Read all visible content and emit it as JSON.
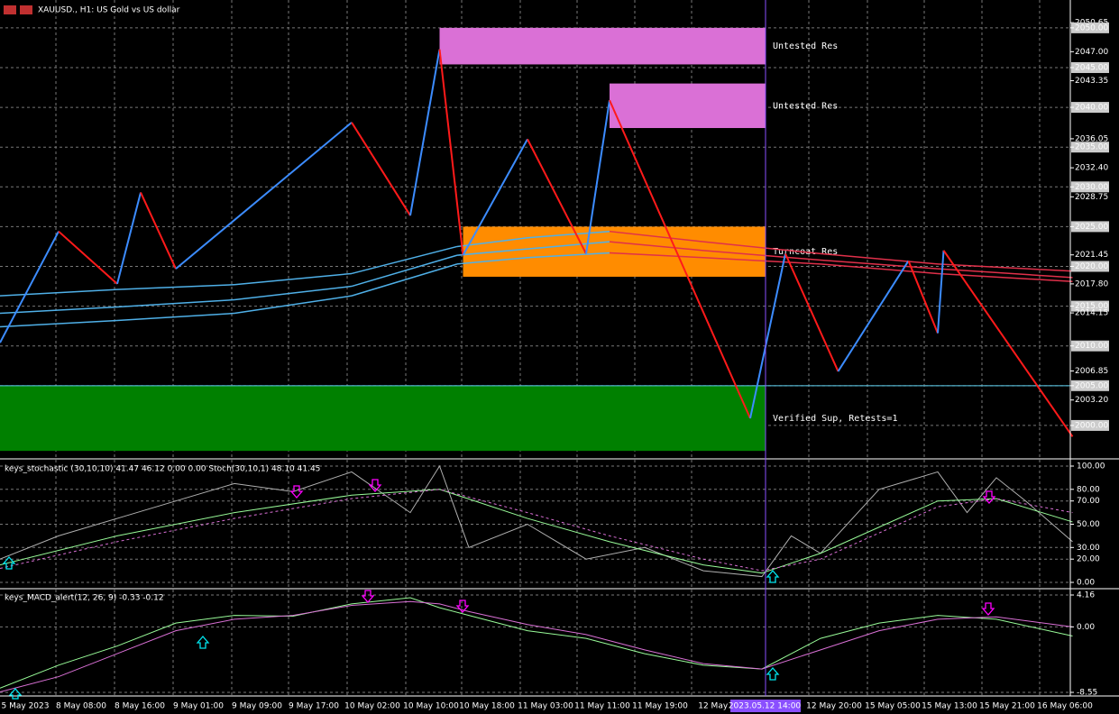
{
  "chart_data": {
    "type": "candlestick-indicators",
    "title": "XAUUSD., H1:  US Gold vs US dollar",
    "yticks": [
      {
        "value": 2050.65,
        "label": "2050.65"
      },
      {
        "value": 2050,
        "label": "2050.00"
      },
      {
        "value": 2047,
        "label": "2047.00"
      },
      {
        "value": 2045,
        "label": "2045.00"
      },
      {
        "value": 2043.35,
        "label": "2043.35"
      },
      {
        "value": 2040,
        "label": "2040.00"
      },
      {
        "value": 2036.05,
        "label": "2036.05"
      },
      {
        "value": 2035,
        "label": "2035.00"
      },
      {
        "value": 2032.4,
        "label": "2032.40"
      },
      {
        "value": 2030,
        "label": "2030.00"
      },
      {
        "value": 2028.75,
        "label": "2028.75"
      },
      {
        "value": 2025,
        "label": "2025.00"
      },
      {
        "value": 2021.45,
        "label": "2021.45"
      },
      {
        "value": 2020,
        "label": "2020.00"
      },
      {
        "value": 2017.8,
        "label": "2017.80"
      },
      {
        "value": 2015,
        "label": "2015.00"
      },
      {
        "value": 2014.15,
        "label": "2014.15"
      },
      {
        "value": 2010,
        "label": "2010.00"
      },
      {
        "value": 2006.85,
        "label": "2006.85"
      },
      {
        "value": 2005,
        "label": "2005.00"
      },
      {
        "value": 2003.2,
        "label": "2003.20"
      },
      {
        "value": 2000,
        "label": "2000.00"
      }
    ],
    "ylim": [
      1996.25,
      2053.5
    ],
    "x_labels": [
      "5 May 2023",
      "8 May 08:00",
      "8 May 16:00",
      "9 May 01:00",
      "9 May 09:00",
      "9 May 17:00",
      "10 May 02:00",
      "10 May 10:00",
      "10 May 18:00",
      "11 May 03:00",
      "11 May 11:00",
      "11 May 19:00",
      "12 May 0",
      "2023.05.12 14:00",
      "12 May 20:00",
      "15 May 05:00",
      "15 May 13:00",
      "15 May 21:00",
      "16 May 06:00"
    ],
    "support_line": 2005,
    "zones": [
      {
        "label": "Untested Res",
        "top": 2050,
        "bottom": 2045.4,
        "start": 75,
        "color": "#da70d6"
      },
      {
        "label": "Untested Res",
        "top": 2043,
        "bottom": 2037.4,
        "start": 104,
        "color": "#da70d6"
      },
      {
        "label": "Turncoat Res",
        "top": 2025,
        "bottom": 2018.7,
        "start": 79,
        "color": "#ff8c00"
      },
      {
        "label": "Verified Sup, Retests=1",
        "top": 2005,
        "bottom": 1996.8,
        "start": 0,
        "color": "#008000"
      }
    ],
    "zigzag": {
      "x": [
        0,
        10,
        20,
        24,
        30,
        60,
        70,
        75,
        79,
        90,
        100,
        104,
        128,
        134,
        143,
        155,
        160,
        161,
        183
      ],
      "values": [
        2010.4,
        2024.4,
        2017.8,
        2029.3,
        2019.7,
        2038.1,
        2026.4,
        2047.3,
        2021.4,
        2036,
        2021.6,
        2040.9,
        2000.9,
        2021.6,
        2006.8,
        2020.7,
        2011.6,
        2022,
        1998.6
      ]
    },
    "moving_averages": {
      "x": [
        0,
        20,
        40,
        60,
        78,
        90,
        104,
        120,
        140,
        160,
        183
      ],
      "series": [
        {
          "values": [
            2016.3,
            2017.1,
            2017.7,
            2019.1,
            2022.5,
            2023.6,
            2024.4,
            2023.1,
            2021.6,
            2020.3,
            2019.4
          ]
        },
        {
          "values": [
            2014.1,
            2014.9,
            2015.8,
            2017.5,
            2021.4,
            2022.2,
            2023.1,
            2022,
            2020.8,
            2019.7,
            2018.6
          ]
        },
        {
          "values": [
            2012.4,
            2013.2,
            2014.1,
            2016.3,
            2020.3,
            2021.1,
            2021.7,
            2021.1,
            2020.3,
            2019.1,
            2018.1
          ]
        }
      ]
    },
    "stochastic": {
      "title": "keys_stochastic (30,10,10) 41.47 46.12 0.00 0.00 Stoch(30,10,1) 48.10 41.45",
      "ylim": [
        0,
        100
      ],
      "yticks": [
        {
          "value": 100,
          "label": "100.00"
        },
        {
          "value": 80,
          "label": "80.00"
        },
        {
          "value": 70,
          "label": "70.00"
        },
        {
          "value": 50,
          "label": "50.00"
        },
        {
          "value": 30,
          "label": "30.00"
        },
        {
          "value": 20,
          "label": "20.00"
        },
        {
          "value": 0,
          "label": "0.00"
        }
      ],
      "series": [
        {
          "color": "#b0b0b0",
          "x": [
            0,
            10,
            20,
            30,
            40,
            50,
            60,
            70,
            75,
            80,
            90,
            100,
            110,
            120,
            130,
            135,
            140,
            150,
            160,
            165,
            170,
            175,
            183
          ],
          "values": [
            20,
            40,
            55,
            70,
            85,
            78,
            95,
            60,
            100,
            30,
            50,
            20,
            30,
            10,
            5,
            40,
            25,
            80,
            95,
            60,
            90,
            70,
            35
          ]
        },
        {
          "color": "#98fb98",
          "x": [
            0,
            20,
            40,
            60,
            75,
            90,
            104,
            120,
            130,
            140,
            160,
            170,
            183
          ],
          "values": [
            15,
            40,
            60,
            75,
            80,
            55,
            35,
            15,
            8,
            25,
            70,
            72,
            52
          ]
        },
        {
          "color": "#da70d6",
          "x": [
            0,
            20,
            40,
            60,
            75,
            90,
            104,
            120,
            130,
            140,
            160,
            170,
            183
          ],
          "values": [
            12,
            35,
            55,
            72,
            80,
            60,
            40,
            20,
            10,
            20,
            65,
            72,
            60
          ]
        }
      ]
    },
    "macd": {
      "title": "keys_MACD_alert(12, 26, 9) -0.33 -0.12",
      "ylim": [
        -8.55,
        4.16
      ],
      "yticks": [
        {
          "value": 4.16,
          "label": "4.16"
        },
        {
          "value": 0,
          "label": "0.00"
        },
        {
          "value": -8.55,
          "label": "-8.55"
        }
      ],
      "series": [
        {
          "color": "#98fb98",
          "x": [
            0,
            10,
            20,
            30,
            40,
            50,
            60,
            70,
            75,
            80,
            90,
            100,
            110,
            120,
            130,
            140,
            150,
            160,
            170,
            183
          ],
          "values": [
            -8,
            -5,
            -2.5,
            0.5,
            1.5,
            1.4,
            3,
            3.8,
            2.5,
            1.5,
            -0.5,
            -1.5,
            -3.5,
            -5,
            -5.5,
            -1.5,
            0.5,
            1.5,
            1,
            -1.2
          ]
        },
        {
          "color": "#da70d6",
          "x": [
            0,
            10,
            20,
            30,
            40,
            50,
            60,
            70,
            75,
            80,
            90,
            100,
            110,
            120,
            130,
            140,
            150,
            160,
            170,
            183
          ],
          "values": [
            -8.5,
            -6.5,
            -3.5,
            -0.5,
            1,
            1.5,
            2.8,
            3.3,
            3,
            2,
            0.3,
            -1,
            -3,
            -4.8,
            -5.5,
            -3,
            -0.5,
            1,
            1.3,
            0
          ]
        }
      ]
    }
  }
}
